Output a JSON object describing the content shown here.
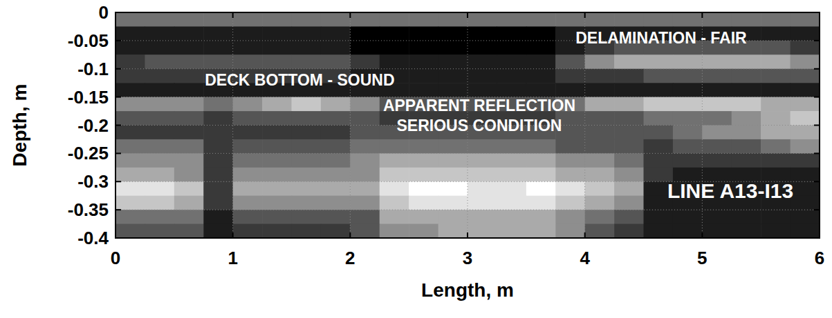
{
  "chart_data": {
    "type": "heatmap",
    "x_label": "Length, m",
    "y_label": "Depth, m",
    "xlim": [
      0,
      6
    ],
    "ylim": [
      -0.4,
      0
    ],
    "xticks": [
      0,
      1,
      2,
      3,
      4,
      5,
      6
    ],
    "yticks": [
      0,
      -0.05,
      -0.1,
      -0.15,
      -0.2,
      -0.25,
      -0.3,
      -0.35,
      -0.4
    ],
    "grid": true,
    "value_range": [
      0,
      9
    ],
    "cells": [
      [
        4,
        4,
        4,
        4,
        4,
        4,
        4,
        4,
        4,
        4,
        4,
        4,
        4,
        4,
        4,
        4,
        4,
        4,
        4,
        4,
        4,
        4,
        4,
        4
      ],
      [
        1,
        1,
        1,
        1,
        1,
        1,
        1,
        1,
        0,
        0,
        0,
        0,
        0,
        0,
        0,
        1,
        1,
        1,
        1,
        1,
        1,
        1,
        1,
        1
      ],
      [
        1,
        1,
        1,
        1,
        1,
        1,
        1,
        1,
        0,
        0,
        0,
        0,
        0,
        0,
        0,
        1,
        2,
        3,
        3,
        3,
        3,
        3,
        3,
        2
      ],
      [
        2,
        3,
        3,
        3,
        3,
        3,
        3,
        3,
        2,
        1,
        1,
        1,
        1,
        1,
        1,
        3,
        5,
        6,
        6,
        6,
        6,
        6,
        6,
        5
      ],
      [
        2,
        2,
        2,
        2,
        2,
        2,
        2,
        2,
        1,
        1,
        1,
        1,
        1,
        1,
        1,
        2,
        2,
        2,
        3,
        3,
        3,
        3,
        3,
        3
      ],
      [
        1,
        1,
        1,
        1,
        1,
        1,
        1,
        1,
        1,
        1,
        1,
        1,
        1,
        1,
        1,
        1,
        1,
        1,
        1,
        1,
        1,
        1,
        1,
        1
      ],
      [
        5,
        5,
        5,
        4,
        5,
        6,
        7,
        6,
        5,
        3,
        3,
        3,
        3,
        3,
        3,
        4,
        6,
        6,
        7,
        7,
        7,
        7,
        6,
        6
      ],
      [
        3,
        3,
        3,
        2,
        3,
        3,
        3,
        3,
        3,
        2,
        2,
        2,
        2,
        2,
        2,
        3,
        3,
        3,
        4,
        4,
        4,
        5,
        6,
        7
      ],
      [
        2,
        2,
        2,
        2,
        2,
        2,
        2,
        2,
        3,
        3,
        3,
        3,
        3,
        3,
        3,
        3,
        3,
        3,
        3,
        4,
        5,
        5,
        6,
        6
      ],
      [
        4,
        4,
        4,
        2,
        3,
        3,
        3,
        3,
        4,
        4,
        4,
        4,
        4,
        4,
        4,
        3,
        3,
        3,
        2,
        3,
        3,
        3,
        4,
        5
      ],
      [
        5,
        5,
        5,
        2,
        4,
        4,
        4,
        4,
        5,
        6,
        6,
        6,
        6,
        6,
        6,
        5,
        5,
        4,
        2,
        2,
        2,
        2,
        2,
        2
      ],
      [
        6,
        6,
        5,
        2,
        5,
        5,
        5,
        5,
        5,
        7,
        7,
        7,
        7,
        7,
        7,
        6,
        6,
        5,
        2,
        1,
        1,
        1,
        1,
        1
      ],
      [
        8,
        8,
        7,
        2,
        6,
        6,
        6,
        6,
        6,
        8,
        9,
        9,
        8,
        8,
        9,
        8,
        7,
        6,
        1,
        1,
        1,
        1,
        1,
        1
      ],
      [
        7,
        7,
        6,
        2,
        5,
        5,
        5,
        5,
        5,
        7,
        8,
        8,
        8,
        8,
        8,
        7,
        6,
        5,
        1,
        1,
        1,
        1,
        1,
        1
      ],
      [
        4,
        4,
        4,
        1,
        3,
        3,
        3,
        3,
        3,
        6,
        6,
        6,
        6,
        6,
        6,
        5,
        4,
        3,
        1,
        1,
        1,
        1,
        1,
        1
      ],
      [
        3,
        3,
        3,
        1,
        2,
        2,
        2,
        2,
        3,
        5,
        5,
        6,
        6,
        6,
        6,
        5,
        3,
        2,
        1,
        1,
        1,
        1,
        1,
        1
      ]
    ],
    "annotations": [
      {
        "text": "DELAMINATION - FAIR",
        "x": 4.65,
        "y": -0.045
      },
      {
        "text": "DECK BOTTOM - SOUND",
        "x": 1.57,
        "y": -0.12
      },
      {
        "text": "APPARENT REFLECTION",
        "x": 3.1,
        "y": -0.165
      },
      {
        "text": "SERIOUS CONDITION",
        "x": 3.1,
        "y": -0.2
      },
      {
        "text": "LINE A13-I13",
        "x": 5.24,
        "y": -0.315
      }
    ]
  }
}
